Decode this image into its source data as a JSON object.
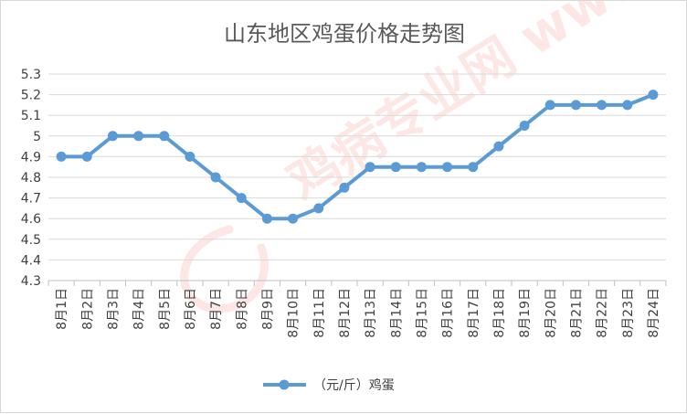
{
  "chart_data": {
    "type": "line",
    "title": "山东地区鸡蛋价格走势图",
    "watermark": "鸡病专业网 www.jbzyw.com",
    "xlabel": "",
    "ylabel": "",
    "categories": [
      "8月1日",
      "8月2日",
      "8月3日",
      "8月4日",
      "8月5日",
      "8月6日",
      "8月7日",
      "8月8日",
      "8月9日",
      "8月10日",
      "8月11日",
      "8月12日",
      "8月13日",
      "8月14日",
      "8月15日",
      "8月16日",
      "8月17日",
      "8月18日",
      "8月19日",
      "8月20日",
      "8月21日",
      "8月22日",
      "8月23日",
      "8月24日"
    ],
    "series": [
      {
        "name": "（元/斤）鸡蛋",
        "color": "#5b9bd5",
        "values": [
          4.9,
          4.9,
          5.0,
          5.0,
          5.0,
          4.9,
          4.8,
          4.7,
          4.6,
          4.6,
          4.65,
          4.75,
          4.85,
          4.85,
          4.85,
          4.85,
          4.85,
          4.95,
          5.05,
          5.15,
          5.15,
          5.15,
          5.15,
          5.2
        ]
      }
    ],
    "ylim": [
      4.3,
      5.3
    ],
    "yticks": [
      "4.3",
      "4.4",
      "4.5",
      "4.6",
      "4.7",
      "4.8",
      "4.9",
      "5",
      "5.1",
      "5.2",
      "5.3"
    ],
    "grid": true,
    "legend": "bottom"
  }
}
